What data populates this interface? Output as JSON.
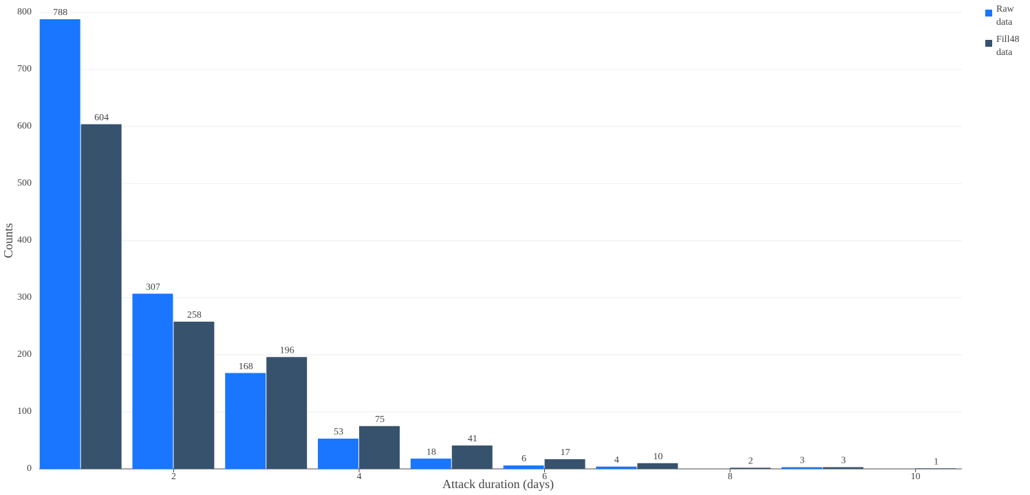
{
  "chart_data": {
    "type": "bar",
    "x": [
      1,
      2,
      3,
      4,
      5,
      6,
      7,
      8,
      9,
      10
    ],
    "series": [
      {
        "name": "Raw data",
        "color": "#1a76ff",
        "values": [
          788,
          307,
          168,
          53,
          18,
          6,
          4,
          null,
          3,
          null
        ]
      },
      {
        "name": "Fill48 data",
        "color": "#37526d",
        "values": [
          604,
          258,
          196,
          75,
          41,
          17,
          10,
          2,
          3,
          1
        ]
      }
    ],
    "xlabel": "Attack duration (days)",
    "ylabel": "Counts",
    "xlim": [
      0.55,
      10.5
    ],
    "xticks": [
      2,
      4,
      6,
      8,
      10
    ],
    "ylim": [
      0,
      800
    ],
    "yticks": [
      0,
      100,
      200,
      300,
      400,
      500,
      600,
      700,
      800
    ],
    "grid": true,
    "legend": "top-right"
  }
}
